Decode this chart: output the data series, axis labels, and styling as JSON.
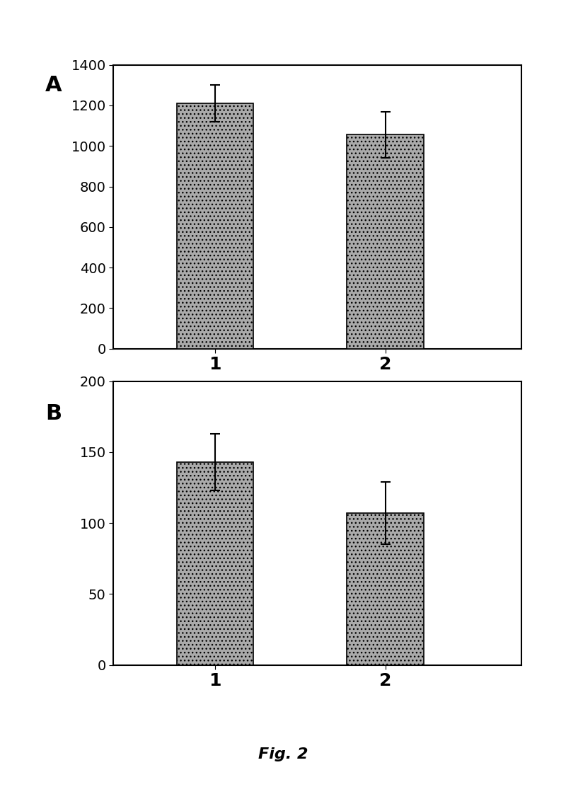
{
  "panel_A": {
    "categories": [
      "1",
      "2"
    ],
    "values": [
      1210,
      1055
    ],
    "errors": [
      90,
      115
    ],
    "ylim": [
      0,
      1400
    ],
    "yticks": [
      0,
      200,
      400,
      600,
      800,
      1000,
      1200,
      1400
    ],
    "label": "A"
  },
  "panel_B": {
    "categories": [
      "1",
      "2"
    ],
    "values": [
      143,
      107
    ],
    "errors": [
      20,
      22
    ],
    "ylim": [
      0,
      200
    ],
    "yticks": [
      0,
      50,
      100,
      150,
      200
    ],
    "label": "B"
  },
  "bar_color": "#aaaaaa",
  "bar_hatch": "...",
  "bar_width": 0.45,
  "fig_caption": "Fig. 2",
  "background_color": "#ffffff",
  "tick_fontsize": 14,
  "label_fontsize": 22,
  "caption_fontsize": 16,
  "xtick_fontsize": 18
}
